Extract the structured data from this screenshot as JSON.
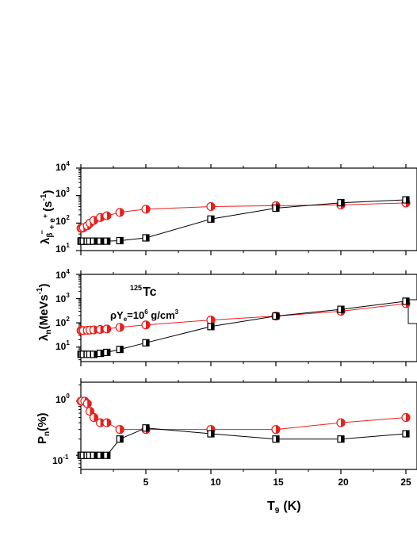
{
  "chart_data": [
    {
      "type": "line",
      "panel": "top",
      "ylabel": {
        "main": "λ",
        "sub": "β",
        "sup": "−",
        "after": "+ e",
        "sup2": "+",
        "unit": "(s",
        "unit_sup": "-1",
        "close": ")"
      },
      "yscale": "log",
      "ylim_exp": [
        1,
        4
      ],
      "ytick_labels": [
        "10",
        "10",
        "10",
        "10"
      ],
      "ytick_exps": [
        "1",
        "2",
        "3",
        "4"
      ],
      "xlim": [
        0,
        25.5
      ],
      "series": [
        {
          "marker": "circle-half-filled",
          "color": "#e8201c",
          "x": [
            0.01,
            0.1,
            0.2,
            0.5,
            0.7,
            1.0,
            1.5,
            2.0,
            3.0,
            5.0,
            10.0,
            15.0,
            20.0,
            25.0
          ],
          "y": [
            65,
            65,
            68,
            80,
            100,
            125,
            160,
            185,
            245,
            320,
            400,
            430,
            460,
            540
          ]
        },
        {
          "marker": "square-half-filled",
          "color": "#000000",
          "x": [
            0.01,
            0.1,
            0.2,
            0.5,
            0.7,
            1.0,
            1.5,
            2.0,
            3.0,
            5.0,
            10.0,
            15.0,
            20.0,
            25.0
          ],
          "y": [
            22,
            22,
            22,
            22,
            22,
            22,
            22,
            22,
            23,
            29,
            140,
            350,
            550,
            700
          ]
        }
      ]
    },
    {
      "type": "line",
      "panel": "middle",
      "ylabel": {
        "main": "λ",
        "sub": "n",
        "unit": "(MeVs",
        "unit_sup": "-1",
        "close": ")"
      },
      "yscale": "log",
      "ylim_exp": [
        0.4,
        4
      ],
      "ytick_labels": [
        "10",
        "10",
        "10",
        "10"
      ],
      "ytick_exps": [
        "1",
        "2",
        "3",
        "4"
      ],
      "xlim": [
        0,
        25.5
      ],
      "series": [
        {
          "marker": "circle-half-filled",
          "color": "#e8201c",
          "x": [
            0.01,
            0.1,
            0.2,
            0.5,
            0.7,
            1.0,
            1.5,
            2.0,
            3.0,
            5.0,
            10.0,
            15.0,
            20.0,
            25.0
          ],
          "y": [
            48,
            48,
            48,
            49,
            50,
            51,
            53,
            56,
            65,
            82,
            130,
            190,
            300,
            620
          ]
        },
        {
          "marker": "square-half-filled",
          "color": "#000000",
          "x": [
            0.01,
            0.1,
            0.2,
            0.5,
            0.7,
            1.0,
            1.5,
            2.0,
            3.0,
            5.0,
            10.0,
            15.0,
            20.0,
            25.0
          ],
          "y": [
            5,
            5,
            5,
            5,
            5,
            5,
            5.5,
            6,
            8,
            15,
            70,
            190,
            360,
            780
          ]
        }
      ]
    },
    {
      "type": "line",
      "panel": "bottom",
      "ylabel": {
        "main": "P",
        "sub": "n",
        "unit": "(%)"
      },
      "yscale": "log",
      "ylim_exp": [
        -1.26,
        0.35
      ],
      "ytick_labels": [
        "10",
        "10"
      ],
      "ytick_exps": [
        "-1",
        "0"
      ],
      "xlim": [
        0,
        25.5
      ],
      "xlabel": {
        "main": "T",
        "sub": "9",
        "unit": "(K)"
      },
      "xticks": [
        5,
        10,
        15,
        20,
        25
      ],
      "series": [
        {
          "marker": "circle-half-filled",
          "color": "#e8201c",
          "x": [
            0.01,
            0.1,
            0.3,
            0.5,
            0.7,
            1.0,
            1.5,
            2.0,
            3.0,
            5.0,
            10.0,
            15.0,
            20.0,
            25.0
          ],
          "y": [
            1.0,
            1.0,
            1.0,
            0.9,
            0.65,
            0.5,
            0.4,
            0.4,
            0.3,
            0.3,
            0.3,
            0.3,
            0.4,
            0.5
          ]
        },
        {
          "marker": "square-half-filled",
          "color": "#000000",
          "x": [
            0.01,
            0.1,
            0.2,
            0.5,
            0.7,
            1.0,
            1.5,
            2.0,
            3.0,
            5.0,
            10.0,
            15.0,
            20.0,
            25.0
          ],
          "y": [
            0.1,
            0.1,
            0.1,
            0.1,
            0.1,
            0.1,
            0.1,
            0.1,
            0.2,
            0.32,
            0.25,
            0.2,
            0.2,
            0.25
          ]
        }
      ]
    }
  ],
  "annotations": {
    "nucleus": {
      "mass": "125",
      "symbol": "Tc"
    },
    "density": {
      "rho": "ρY",
      "sub": "e",
      "eq": "=10",
      "sup": "6",
      "unit": " g/cm",
      "unit_sup": "3"
    }
  },
  "xtick_labels": [
    "5",
    "10",
    "15",
    "20",
    "25"
  ]
}
